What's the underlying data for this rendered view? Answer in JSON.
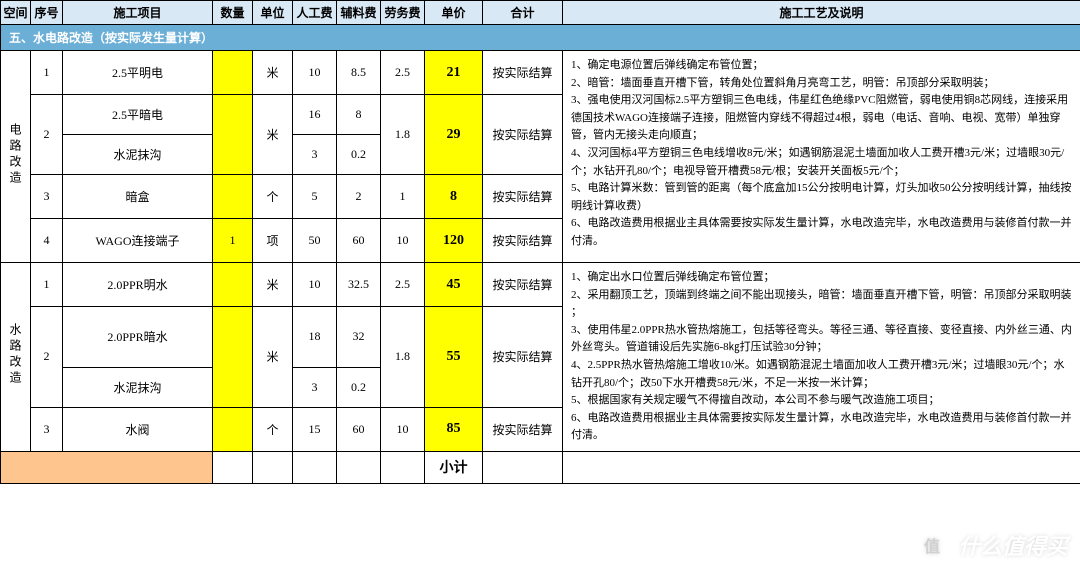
{
  "columns": {
    "c1": "空间",
    "c2": "序号",
    "c3": "施工项目",
    "c4": "数量",
    "c5": "单位",
    "c6": "人工费",
    "c7": "辅料费",
    "c8": "劳务费",
    "c9": "单价",
    "c10": "合计",
    "c11": "施工工艺及说明"
  },
  "colWidths": {
    "c1": 30,
    "c2": 32,
    "c3": 150,
    "c4": 40,
    "c5": 40,
    "c6": 44,
    "c7": 44,
    "c8": 44,
    "c9": 58,
    "c10": 80,
    "c11": 518
  },
  "sectionTitle": "五、水电路改造（按实际发生量计算）",
  "groups": [
    {
      "space": "电路改造",
      "rows": [
        {
          "num": "1",
          "name": "2.5平明电",
          "qty": "",
          "unit": "米",
          "labor": "10",
          "material": "8.5",
          "service": "2.5",
          "price": "21",
          "total": "按实际结算",
          "span": 1
        },
        {
          "num": "2",
          "name": "2.5平暗电",
          "qty": "",
          "unit": "米",
          "labor": "16",
          "material": "8",
          "service": "1.8",
          "price": "29",
          "total": "按实际结算",
          "span": 2,
          "sub": {
            "name": "水泥抹沟",
            "labor": "3",
            "material": "0.2"
          }
        },
        {
          "num": "3",
          "name": "暗盒",
          "qty": "",
          "unit": "个",
          "labor": "5",
          "material": "2",
          "service": "1",
          "price": "8",
          "total": "按实际结算",
          "span": 1
        },
        {
          "num": "4",
          "name": "WAGO连接端子",
          "qty": "1",
          "unit": "项",
          "labor": "50",
          "material": "60",
          "service": "10",
          "price": "120",
          "total": "按实际结算",
          "span": 1
        }
      ],
      "desc": "1、确定电源位置后弹线确定布管位置；\n2、暗管：墙面垂直开槽下管，转角处位置斜角月亮弯工艺，明管：吊顶部分采取明装；\n3、强电使用汉河国标2.5平方塑铜三色电线，伟星红色绝缘PVC阻燃管，弱电使用铜8芯网线，连接采用德国技术WAGO连接端子连接，阻燃管内穿线不得超过4根，弱电（电话、音响、电视、宽带）单独穿管，管内无接头走向顺直；\n4、汉河国标4平方塑铜三色电线增收8元/米；如遇钢筋混泥土墙面加收人工费开槽3元/米；过墙眼30元/个；水钻开孔80/个；电视导管开槽费58元/根；安装开关面板5元/个；\n5、电路计算米数：管到管的距离（每个底盒加15公分按明电计算，灯头加收50公分按明线计算，抽线按明线计算收费）\n6、电路改造费用根据业主具体需要按实际发生量计算，水电改造完毕，水电改造费用与装修首付款一并付清。"
    },
    {
      "space": "水路改造",
      "rows": [
        {
          "num": "1",
          "name": "2.0PPR明水",
          "qty": "",
          "unit": "米",
          "labor": "10",
          "material": "32.5",
          "service": "2.5",
          "price": "45",
          "total": "按实际结算",
          "span": 1
        },
        {
          "num": "2",
          "name": "2.0PPR暗水",
          "qty": "",
          "unit": "米",
          "labor": "18",
          "material": "32",
          "service": "1.8",
          "price": "55",
          "total": "按实际结算",
          "span": 2,
          "sub": {
            "name": "水泥抹沟",
            "labor": "3",
            "material": "0.2"
          }
        },
        {
          "num": "3",
          "name": "水阀",
          "qty": "",
          "unit": "个",
          "labor": "15",
          "material": "60",
          "service": "10",
          "price": "85",
          "total": "按实际结算",
          "span": 1
        }
      ],
      "desc": "1、确定出水口位置后弹线确定布管位置；\n2、采用翻顶工艺，顶端到终端之间不能出现接头，暗管：墙面垂直开槽下管，明管：吊顶部分采取明装 ；\n3、使用伟星2.0PPR热水管热熔施工，包括等径弯头。等径三通、等径直接、变径直接、内外丝三通、内外丝弯头。管道铺设后先实施6-8㎏打压试验30分钟；\n4、2.5PPR热水管热熔施工增收10/米。如遇钢筋混泥土墙面加收人工费开槽3元/米；过墙眼30元/个；水钻开孔80/个；改50下水开槽费58元/米，不足一米按一米计算；\n5、根据国家有关规定暖气不得擅自改动，本公司不参与暖气改造施工项目；\n6、电路改造费用根据业主具体需要按实际发生量计算，水电改造完毕，水电改造费用与装修首付款一并付清。"
    }
  ],
  "subtotal": "小计",
  "watermark": {
    "badge": "值",
    "text": "什么值得买"
  }
}
